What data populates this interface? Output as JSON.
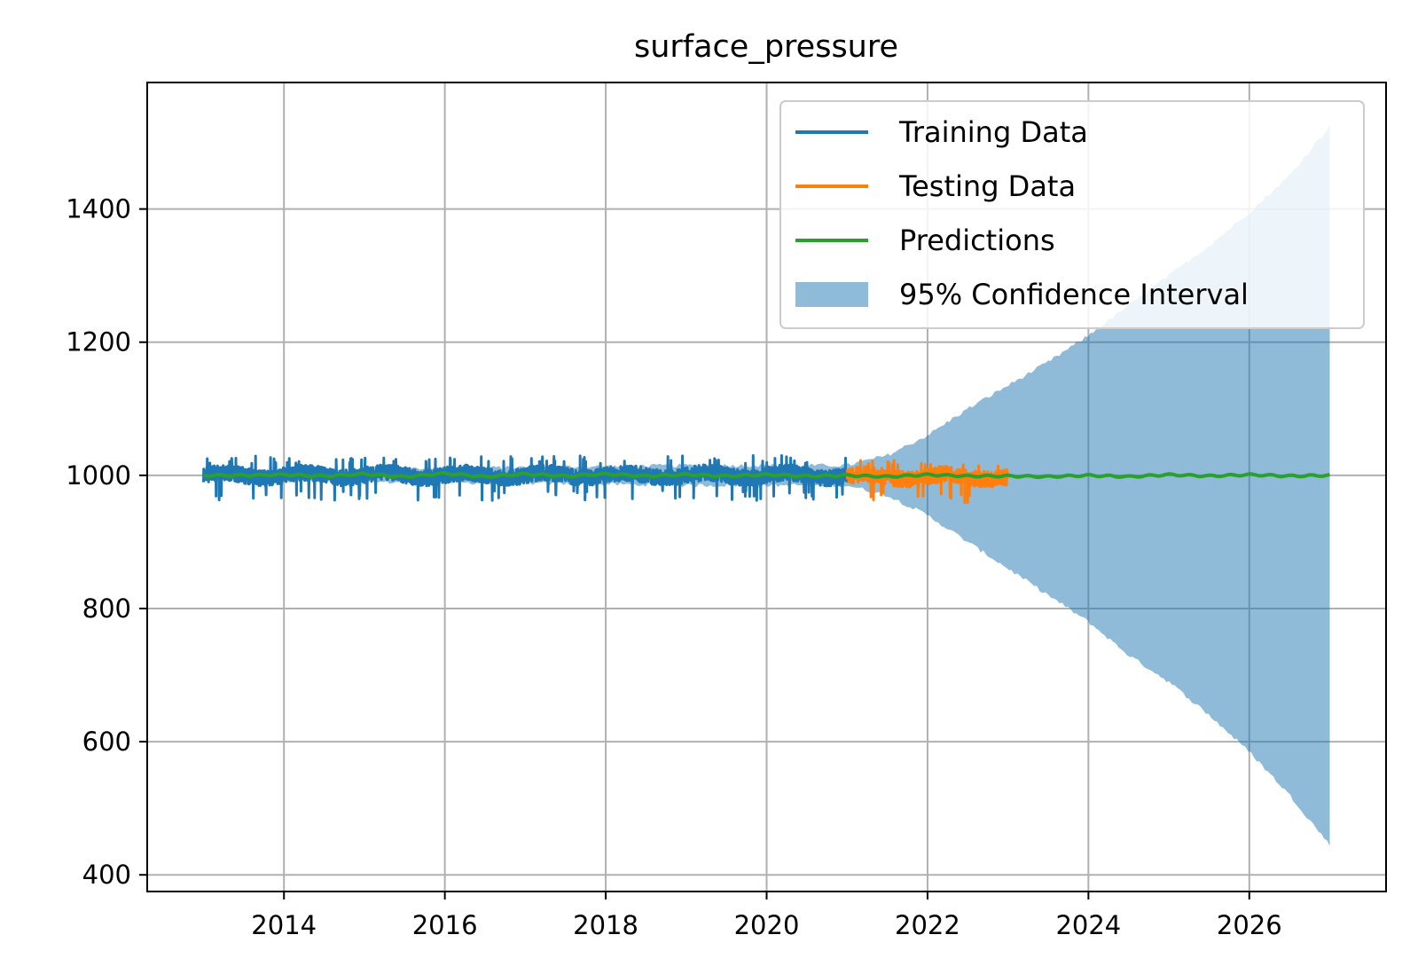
{
  "chart_data": {
    "type": "line",
    "title": "surface_pressure",
    "xlabel": "",
    "ylabel": "",
    "xlim": [
      2012.3,
      2027.7
    ],
    "ylim": [
      375,
      1590
    ],
    "x_ticks": [
      2014,
      2016,
      2018,
      2020,
      2022,
      2024,
      2026
    ],
    "x_tick_labels": [
      "2014",
      "2016",
      "2018",
      "2020",
      "2022",
      "2024",
      "2026"
    ],
    "y_ticks": [
      400,
      600,
      800,
      1000,
      1200,
      1400
    ],
    "y_tick_labels": [
      "400",
      "600",
      "800",
      "1000",
      "1200",
      "1400"
    ],
    "grid": true,
    "legend_position": "top-right",
    "series": [
      {
        "name": "Training Data",
        "color": "#1f77b4",
        "x_range": [
          2013.0,
          2021.0
        ],
        "mean": 1000,
        "amplitude": [
          -38,
          30
        ],
        "kind": "noisy"
      },
      {
        "name": "Testing Data",
        "color": "#ff7f0e",
        "x_range": [
          2021.0,
          2023.0
        ],
        "mean": 998,
        "amplitude": [
          -40,
          25
        ],
        "kind": "noisy"
      },
      {
        "name": "Predictions",
        "color": "#2ca02c",
        "x": [
          2013.0,
          2013.5,
          2014.0,
          2014.5,
          2015.0,
          2015.5,
          2016.0,
          2016.5,
          2017.0,
          2017.5,
          2018.0,
          2018.5,
          2019.0,
          2019.5,
          2020.0,
          2020.5,
          2021.0,
          2021.5,
          2022.0,
          2022.5,
          2023.0,
          2023.5,
          2024.0,
          2024.5,
          2025.0,
          2025.5,
          2026.0,
          2026.5,
          2027.0
        ],
        "y": [
          1000,
          1000,
          1001,
          999,
          1002,
          998,
          1003,
          998,
          1002,
          999,
          1002,
          999,
          1001,
          999,
          1001,
          999,
          1000,
          998,
          1001,
          999,
          999,
          998,
          1000,
          998,
          1001,
          999,
          1001,
          999,
          1000
        ],
        "kind": "line"
      },
      {
        "name": "95% Confidence Interval",
        "color": "#1f77b4",
        "opacity": 0.5,
        "kind": "band",
        "x": [
          2013.0,
          2015.0,
          2017.0,
          2019.0,
          2020.0,
          2021.0,
          2021.5,
          2022.0,
          2022.5,
          2023.0,
          2023.5,
          2024.0,
          2024.5,
          2025.0,
          2025.5,
          2026.0,
          2026.5,
          2027.0
        ],
        "upper": [
          1005,
          1010,
          1012,
          1015,
          1015,
          1015,
          1030,
          1060,
          1100,
          1135,
          1170,
          1210,
          1255,
          1300,
          1345,
          1395,
          1450,
          1525
        ],
        "lower": [
          995,
          990,
          988,
          985,
          985,
          985,
          970,
          940,
          900,
          860,
          820,
          780,
          730,
          690,
          640,
          585,
          520,
          445
        ]
      }
    ]
  }
}
